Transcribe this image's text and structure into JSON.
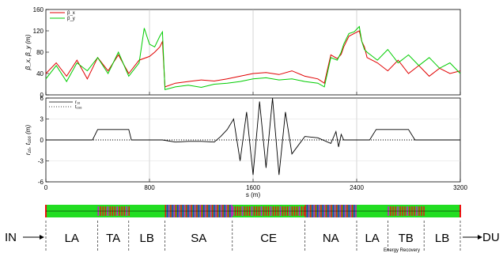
{
  "chart_data": [
    {
      "type": "line",
      "ylabel": "β_x, β_y (m)",
      "xlim": [
        0,
        3200
      ],
      "ylim": [
        0,
        160
      ],
      "yticks": [
        0,
        40,
        80,
        120,
        160
      ],
      "legend": {
        "placement": "top-left",
        "entries": [
          "β_x",
          "β_y"
        ]
      },
      "series": [
        {
          "name": "β_x",
          "color": "#e00000",
          "x": [
            0,
            80,
            160,
            240,
            320,
            400,
            480,
            560,
            640,
            720,
            800,
            840,
            880,
            900,
            920,
            1000,
            1100,
            1200,
            1300,
            1400,
            1500,
            1600,
            1700,
            1800,
            1900,
            2000,
            2100,
            2150,
            2200,
            2250,
            2280,
            2300,
            2320,
            2340,
            2380,
            2420,
            2440,
            2460,
            2480,
            2560,
            2640,
            2720,
            2800,
            2880,
            2960,
            3040,
            3120,
            3200
          ],
          "y": [
            40,
            60,
            35,
            65,
            30,
            70,
            45,
            75,
            40,
            65,
            72,
            80,
            90,
            100,
            15,
            22,
            25,
            28,
            26,
            30,
            35,
            40,
            42,
            38,
            45,
            35,
            30,
            22,
            75,
            68,
            76,
            90,
            100,
            110,
            115,
            120,
            100,
            90,
            70,
            60,
            45,
            65,
            40,
            55,
            35,
            50,
            40,
            45
          ]
        },
        {
          "name": "β_y",
          "color": "#00cc00",
          "x": [
            0,
            80,
            160,
            240,
            320,
            400,
            480,
            560,
            640,
            720,
            760,
            800,
            840,
            880,
            900,
            920,
            1000,
            1100,
            1200,
            1300,
            1400,
            1500,
            1600,
            1700,
            1800,
            1900,
            2000,
            2100,
            2150,
            2200,
            2250,
            2280,
            2300,
            2320,
            2340,
            2380,
            2420,
            2440,
            2460,
            2480,
            2560,
            2640,
            2720,
            2800,
            2880,
            2960,
            3040,
            3120,
            3200
          ],
          "y": [
            30,
            55,
            25,
            60,
            45,
            70,
            40,
            80,
            35,
            60,
            125,
            95,
            90,
            110,
            118,
            10,
            15,
            18,
            14,
            20,
            22,
            25,
            30,
            32,
            28,
            30,
            25,
            22,
            15,
            70,
            65,
            80,
            95,
            105,
            115,
            118,
            128,
            100,
            85,
            80,
            65,
            85,
            60,
            75,
            55,
            70,
            50,
            60,
            40
          ]
        }
      ]
    },
    {
      "type": "line",
      "xlabel": "s (m)",
      "ylabel": "r₁₆, t₁₆₆ (m)",
      "xlim": [
        0,
        3200
      ],
      "ylim": [
        -6,
        6
      ],
      "xticks": [
        0,
        800,
        1600,
        2400,
        3200
      ],
      "yticks": [
        -6,
        -3,
        0,
        3,
        6
      ],
      "legend": {
        "placement": "top-left",
        "entries": [
          "r₁₆",
          "t₁₆₆"
        ]
      },
      "series": [
        {
          "name": "r₁₆",
          "color": "#000000",
          "x": [
            0,
            360,
            400,
            440,
            480,
            520,
            560,
            600,
            640,
            660,
            900,
            1000,
            1100,
            1200,
            1300,
            1350,
            1400,
            1450,
            1500,
            1550,
            1600,
            1650,
            1700,
            1750,
            1800,
            1850,
            1900,
            2000,
            2100,
            2200,
            2240,
            2260,
            2280,
            2300,
            2500,
            2550,
            2600,
            2650,
            2700,
            2750,
            2800,
            2850,
            3200
          ],
          "y": [
            0,
            0,
            1.5,
            1.5,
            1.5,
            1.5,
            1.5,
            1.5,
            1.5,
            0,
            0,
            -0.3,
            -0.2,
            -0.2,
            -0.3,
            0.5,
            1.5,
            3,
            -3,
            4,
            -5,
            5.5,
            -4,
            6,
            -5,
            4,
            -2,
            0.5,
            0.3,
            -0.5,
            1.2,
            -1,
            0.8,
            0,
            0,
            1.5,
            1.5,
            1.5,
            1.5,
            1.5,
            1.5,
            0,
            0
          ]
        },
        {
          "name": "t₁₆₆",
          "color": "#000000",
          "dash": "1,2",
          "x": [
            0,
            3200
          ],
          "y": [
            0,
            0
          ]
        }
      ]
    }
  ],
  "lattice": {
    "colors": {
      "background": "#22dd22",
      "dipole": "#ee1111",
      "quad": "#2222ee",
      "magenta": "#dd00dd"
    },
    "segments": [
      {
        "label": "LA",
        "from": 0,
        "to": 400
      },
      {
        "label": "TA",
        "from": 400,
        "to": 640
      },
      {
        "label": "LB",
        "from": 640,
        "to": 920
      },
      {
        "label": "SA",
        "from": 920,
        "to": 1440
      },
      {
        "label": "CE",
        "from": 1440,
        "to": 2000
      },
      {
        "label": "NA",
        "from": 2000,
        "to": 2400
      },
      {
        "label": "LA",
        "from": 2400,
        "to": 2640
      },
      {
        "label": "TB",
        "from": 2640,
        "to": 2920
      },
      {
        "label": "LB",
        "from": 2920,
        "to": 3200
      }
    ],
    "inlet_label": "IN",
    "outlet_label": "DU",
    "note": "Energy Recovery"
  }
}
